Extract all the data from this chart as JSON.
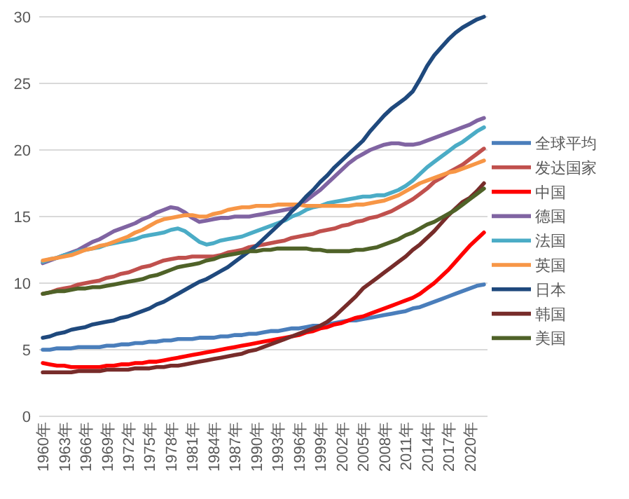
{
  "chart_data": {
    "type": "line",
    "categories": [
      "1960年",
      null,
      null,
      "1963年",
      null,
      null,
      "1966年",
      null,
      null,
      "1969年",
      null,
      null,
      "1972年",
      null,
      null,
      "1975年",
      null,
      null,
      "1978年",
      null,
      null,
      "1981年",
      null,
      null,
      "1984年",
      null,
      null,
      "1987年",
      null,
      null,
      "1990年",
      null,
      null,
      "1993年",
      null,
      null,
      "1996年",
      null,
      null,
      "1999年",
      null,
      null,
      "2002年",
      null,
      null,
      "2005年",
      null,
      null,
      "2008年",
      null,
      null,
      "2011年",
      null,
      null,
      "2014年",
      null,
      null,
      "2017年",
      null,
      null,
      "2020年",
      null,
      null
    ],
    "ylim": [
      0,
      30
    ],
    "yticks": [
      0,
      5,
      10,
      15,
      20,
      25,
      30
    ],
    "grid": "y",
    "legend": "right",
    "series": [
      {
        "name": "全球平均",
        "color": "#4a7ebb",
        "values": [
          5.0,
          5.0,
          5.1,
          5.1,
          5.1,
          5.2,
          5.2,
          5.2,
          5.2,
          5.3,
          5.3,
          5.4,
          5.4,
          5.5,
          5.5,
          5.6,
          5.6,
          5.7,
          5.7,
          5.8,
          5.8,
          5.8,
          5.9,
          5.9,
          5.9,
          6.0,
          6.0,
          6.1,
          6.1,
          6.2,
          6.2,
          6.3,
          6.4,
          6.4,
          6.5,
          6.6,
          6.6,
          6.7,
          6.8,
          6.8,
          6.9,
          7.0,
          7.1,
          7.2,
          7.2,
          7.3,
          7.4,
          7.5,
          7.6,
          7.7,
          7.8,
          7.9,
          8.1,
          8.2,
          8.4,
          8.6,
          8.8,
          9.0,
          9.2,
          9.4,
          9.6,
          9.8,
          9.9
        ]
      },
      {
        "name": "发达国家",
        "color": "#c0504d",
        "values": [
          9.2,
          9.3,
          9.5,
          9.6,
          9.7,
          9.9,
          10.0,
          10.1,
          10.2,
          10.4,
          10.5,
          10.7,
          10.8,
          11.0,
          11.2,
          11.3,
          11.5,
          11.7,
          11.8,
          11.9,
          11.9,
          12.0,
          12.0,
          12.0,
          12.0,
          12.1,
          12.3,
          12.4,
          12.5,
          12.7,
          12.8,
          12.9,
          13.0,
          13.1,
          13.2,
          13.4,
          13.5,
          13.6,
          13.7,
          13.9,
          14.0,
          14.1,
          14.3,
          14.4,
          14.6,
          14.7,
          14.9,
          15.0,
          15.2,
          15.4,
          15.7,
          16.0,
          16.3,
          16.7,
          17.1,
          17.6,
          17.9,
          18.3,
          18.6,
          18.9,
          19.3,
          19.7,
          20.1
        ]
      },
      {
        "name": "中国",
        "color": "#ff0000",
        "values": [
          4.0,
          3.9,
          3.8,
          3.8,
          3.7,
          3.7,
          3.7,
          3.7,
          3.7,
          3.8,
          3.8,
          3.9,
          3.9,
          4.0,
          4.0,
          4.1,
          4.1,
          4.2,
          4.3,
          4.4,
          4.5,
          4.6,
          4.7,
          4.8,
          4.9,
          5.0,
          5.1,
          5.2,
          5.3,
          5.4,
          5.5,
          5.6,
          5.7,
          5.8,
          5.9,
          6.0,
          6.1,
          6.3,
          6.4,
          6.6,
          6.7,
          6.9,
          7.0,
          7.2,
          7.4,
          7.5,
          7.7,
          7.9,
          8.1,
          8.3,
          8.5,
          8.7,
          8.9,
          9.2,
          9.6,
          10.0,
          10.5,
          11.0,
          11.6,
          12.2,
          12.8,
          13.3,
          13.8
        ]
      },
      {
        "name": "德国",
        "color": "#8064a2",
        "values": [
          11.5,
          11.7,
          11.9,
          12.1,
          12.3,
          12.5,
          12.8,
          13.1,
          13.3,
          13.6,
          13.9,
          14.1,
          14.3,
          14.5,
          14.8,
          15.0,
          15.3,
          15.5,
          15.7,
          15.6,
          15.3,
          14.9,
          14.6,
          14.7,
          14.8,
          14.9,
          14.9,
          15.0,
          15.0,
          15.0,
          15.1,
          15.2,
          15.3,
          15.4,
          15.5,
          15.6,
          15.9,
          16.2,
          16.6,
          17.0,
          17.5,
          18.0,
          18.5,
          19.0,
          19.4,
          19.7,
          20.0,
          20.2,
          20.4,
          20.5,
          20.5,
          20.4,
          20.4,
          20.5,
          20.7,
          20.9,
          21.1,
          21.3,
          21.5,
          21.7,
          21.9,
          22.2,
          22.4
        ]
      },
      {
        "name": "法国",
        "color": "#4bacc6",
        "values": [
          11.6,
          11.8,
          11.9,
          12.1,
          12.2,
          12.4,
          12.5,
          12.6,
          12.7,
          12.9,
          13.0,
          13.1,
          13.2,
          13.3,
          13.5,
          13.6,
          13.7,
          13.8,
          14.0,
          14.1,
          13.9,
          13.5,
          13.1,
          12.9,
          13.0,
          13.2,
          13.3,
          13.4,
          13.5,
          13.7,
          13.9,
          14.1,
          14.3,
          14.5,
          14.7,
          15.0,
          15.2,
          15.5,
          15.7,
          15.8,
          16.0,
          16.1,
          16.2,
          16.3,
          16.4,
          16.5,
          16.5,
          16.6,
          16.6,
          16.8,
          17.0,
          17.3,
          17.7,
          18.2,
          18.7,
          19.1,
          19.5,
          19.9,
          20.3,
          20.6,
          21.0,
          21.4,
          21.7
        ]
      },
      {
        "name": "英国",
        "color": "#f79646",
        "values": [
          11.7,
          11.8,
          11.9,
          12.0,
          12.1,
          12.3,
          12.5,
          12.6,
          12.8,
          12.9,
          13.1,
          13.3,
          13.5,
          13.8,
          14.0,
          14.3,
          14.6,
          14.8,
          14.9,
          15.0,
          15.1,
          15.1,
          15.0,
          15.0,
          15.2,
          15.3,
          15.5,
          15.6,
          15.7,
          15.7,
          15.8,
          15.8,
          15.8,
          15.9,
          15.9,
          15.9,
          15.9,
          15.8,
          15.8,
          15.8,
          15.8,
          15.8,
          15.8,
          15.8,
          15.9,
          15.9,
          16.0,
          16.1,
          16.2,
          16.4,
          16.6,
          16.9,
          17.2,
          17.5,
          17.7,
          17.9,
          18.1,
          18.3,
          18.4,
          18.6,
          18.8,
          19.0,
          19.2
        ]
      },
      {
        "name": "日本",
        "color": "#1f497d",
        "values": [
          5.9,
          6.0,
          6.2,
          6.3,
          6.5,
          6.6,
          6.7,
          6.9,
          7.0,
          7.1,
          7.2,
          7.4,
          7.5,
          7.7,
          7.9,
          8.1,
          8.4,
          8.6,
          8.9,
          9.2,
          9.5,
          9.8,
          10.1,
          10.3,
          10.6,
          10.9,
          11.2,
          11.6,
          12.0,
          12.4,
          12.8,
          13.3,
          13.8,
          14.3,
          14.8,
          15.4,
          15.9,
          16.5,
          17.0,
          17.6,
          18.1,
          18.7,
          19.2,
          19.7,
          20.2,
          20.7,
          21.4,
          22.0,
          22.6,
          23.1,
          23.5,
          23.9,
          24.4,
          25.3,
          26.3,
          27.1,
          27.7,
          28.3,
          28.8,
          29.2,
          29.5,
          29.8,
          30.0
        ]
      },
      {
        "name": "韩国",
        "color": "#772c2a",
        "values": [
          3.3,
          3.3,
          3.3,
          3.3,
          3.3,
          3.4,
          3.4,
          3.4,
          3.4,
          3.5,
          3.5,
          3.5,
          3.5,
          3.6,
          3.6,
          3.6,
          3.7,
          3.7,
          3.8,
          3.8,
          3.9,
          4.0,
          4.1,
          4.2,
          4.3,
          4.4,
          4.5,
          4.6,
          4.7,
          4.9,
          5.0,
          5.2,
          5.4,
          5.6,
          5.8,
          6.0,
          6.2,
          6.4,
          6.6,
          6.8,
          7.1,
          7.5,
          8.0,
          8.5,
          9.0,
          9.6,
          10.0,
          10.4,
          10.8,
          11.2,
          11.6,
          12.0,
          12.5,
          12.9,
          13.4,
          13.9,
          14.5,
          15.1,
          15.6,
          16.1,
          16.4,
          16.9,
          17.5
        ]
      },
      {
        "name": "美国",
        "color": "#4f6228",
        "values": [
          9.2,
          9.3,
          9.4,
          9.4,
          9.5,
          9.6,
          9.6,
          9.7,
          9.7,
          9.8,
          9.9,
          10.0,
          10.1,
          10.2,
          10.3,
          10.5,
          10.6,
          10.8,
          11.0,
          11.2,
          11.3,
          11.4,
          11.5,
          11.7,
          11.8,
          12.0,
          12.1,
          12.2,
          12.3,
          12.4,
          12.4,
          12.5,
          12.5,
          12.6,
          12.6,
          12.6,
          12.6,
          12.6,
          12.5,
          12.5,
          12.4,
          12.4,
          12.4,
          12.4,
          12.5,
          12.5,
          12.6,
          12.7,
          12.9,
          13.1,
          13.3,
          13.6,
          13.8,
          14.1,
          14.4,
          14.6,
          14.9,
          15.2,
          15.5,
          15.9,
          16.3,
          16.7,
          17.1
        ]
      }
    ]
  }
}
